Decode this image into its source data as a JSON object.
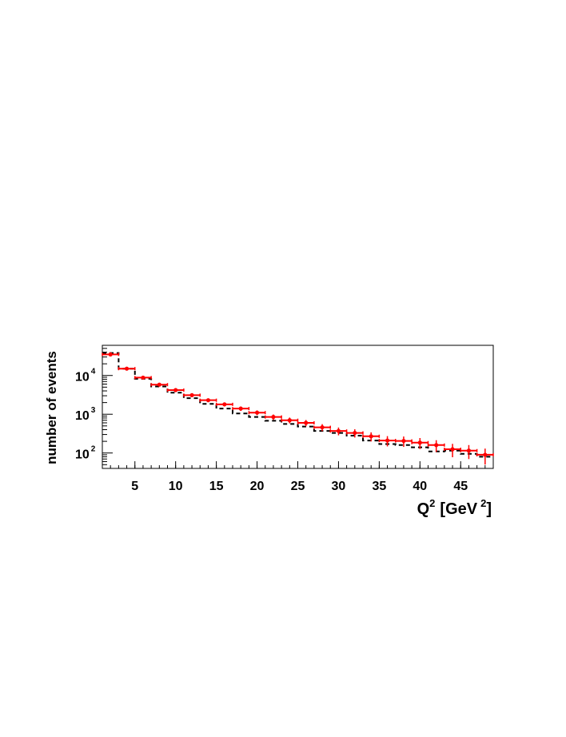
{
  "chart_data": {
    "type": "histogram",
    "xlabel": "Q",
    "xlabel_sup": "2",
    "xlabel_units": "[GeV",
    "xlabel_units_sup": "2",
    "xlabel_close": "]",
    "ylabel": "number of events",
    "xlim": [
      1,
      49
    ],
    "ylim": [
      40,
      60000
    ],
    "y_scale": "log",
    "x_ticks": [
      "5",
      "10",
      "15",
      "20",
      "25",
      "30",
      "35",
      "40",
      "45"
    ],
    "x_tick_values": [
      5,
      10,
      15,
      20,
      25,
      30,
      35,
      40,
      45
    ],
    "y_ticks": [
      {
        "base": "10",
        "exp": "2",
        "value": 100
      },
      {
        "base": "10",
        "exp": "3",
        "value": 1000
      },
      {
        "base": "10",
        "exp": "4",
        "value": 10000
      }
    ],
    "bin_edges": [
      1,
      3,
      5,
      7,
      9,
      11,
      13,
      15,
      17,
      19,
      21,
      23,
      25,
      27,
      29,
      31,
      33,
      35,
      37,
      39,
      41,
      43,
      45,
      47,
      49
    ],
    "series": [
      {
        "style": "red points with error bars",
        "color": "#ff0000",
        "values": [
          35000,
          15000,
          8800,
          5800,
          4200,
          3100,
          2300,
          1800,
          1400,
          1100,
          850,
          700,
          600,
          460,
          370,
          330,
          270,
          210,
          205,
          185,
          160,
          125,
          115,
          90
        ]
      },
      {
        "style": "black dashed histogram",
        "color": "#000000",
        "values": [
          38000,
          15000,
          8200,
          5200,
          3600,
          2600,
          1850,
          1400,
          1050,
          850,
          680,
          560,
          480,
          370,
          330,
          280,
          210,
          170,
          160,
          140,
          110,
          115,
          95,
          80
        ]
      }
    ],
    "grid": false,
    "legend": "none"
  }
}
